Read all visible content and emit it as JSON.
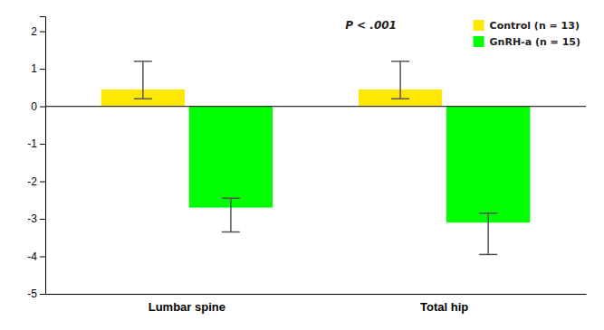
{
  "chart_data": {
    "type": "bar",
    "categories": [
      "Lumbar spine",
      "Total hip"
    ],
    "series": [
      {
        "name": "Control (n = 13)",
        "color": "#FFE800",
        "values": [
          0.45,
          0.45
        ],
        "error_plus": [
          0.75,
          0.75
        ],
        "error_minus": [
          0.25,
          0.25
        ]
      },
      {
        "name": "GnRH-a (n = 15)",
        "color": "#00FF00",
        "values": [
          -2.7,
          -3.1
        ],
        "error_plus": [
          0.25,
          0.25
        ],
        "error_minus": [
          0.65,
          0.85
        ]
      }
    ],
    "ylim": [
      -5,
      2.4
    ],
    "yticks": [
      -5,
      -4,
      -3,
      -2,
      -1,
      0,
      1,
      2
    ],
    "annotations": [
      "P < .001"
    ],
    "legend": "upper right",
    "grid": false
  }
}
